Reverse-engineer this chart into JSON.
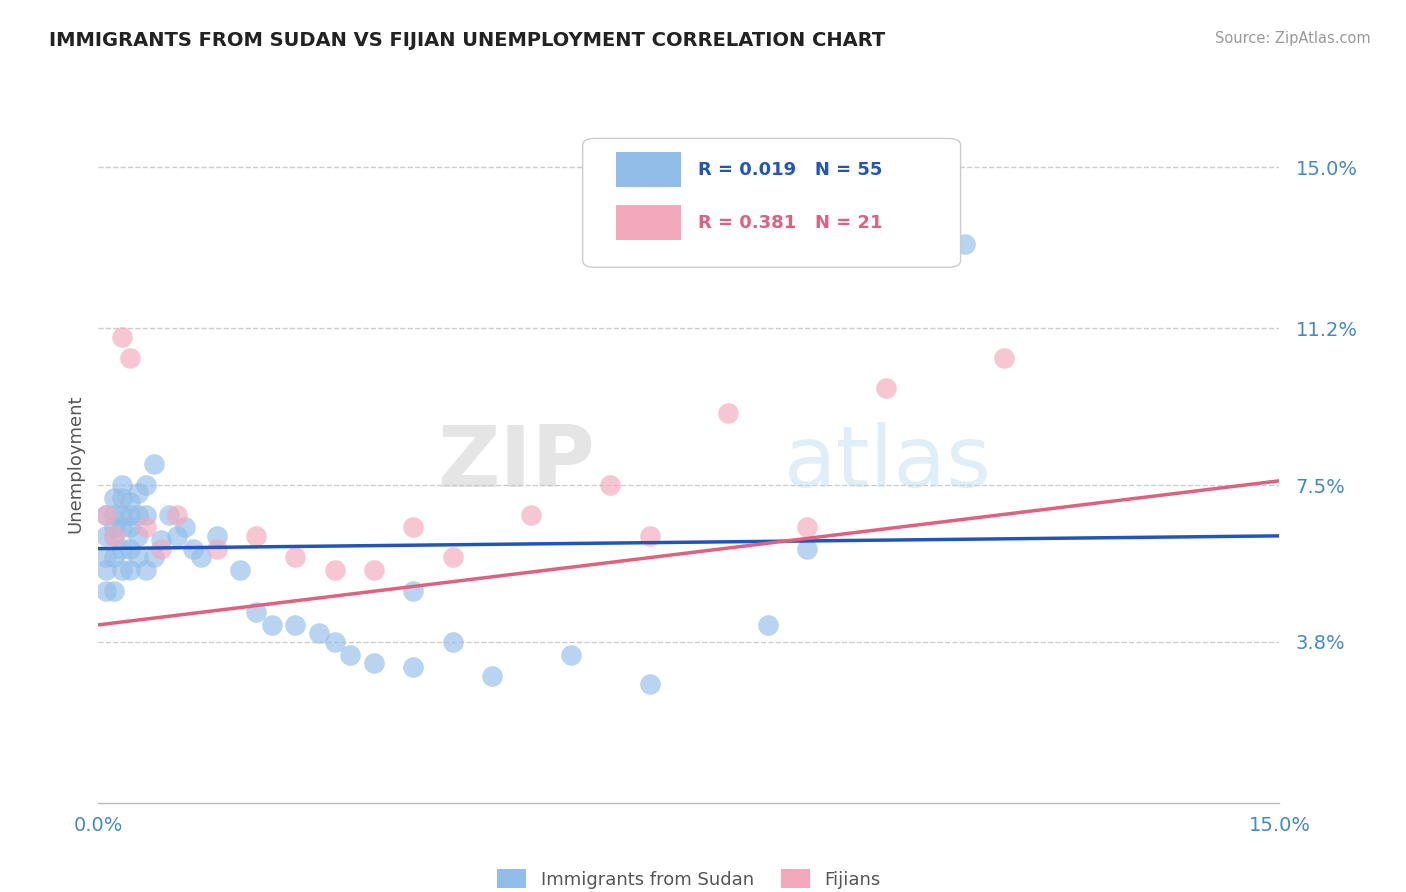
{
  "title": "IMMIGRANTS FROM SUDAN VS FIJIAN UNEMPLOYMENT CORRELATION CHART",
  "source": "Source: ZipAtlas.com",
  "ylabel": "Unemployment",
  "xlim": [
    0.0,
    0.15
  ],
  "ylim": [
    0.0,
    0.16
  ],
  "yticks": [
    0.038,
    0.075,
    0.112,
    0.15
  ],
  "ytick_labels": [
    "3.8%",
    "7.5%",
    "11.2%",
    "15.0%"
  ],
  "xticks": [
    0.0,
    0.15
  ],
  "xtick_labels": [
    "0.0%",
    "15.0%"
  ],
  "legend_R1": "R = 0.019",
  "legend_N1": "N = 55",
  "legend_R2": "R = 0.381",
  "legend_N2": "N = 21",
  "watermark_zip": "ZIP",
  "watermark_atlas": "atlas",
  "blue_color": "#92bde8",
  "pink_color": "#f4a8bc",
  "blue_line_color": "#2255bb",
  "pink_line_color": "#e06080",
  "title_color": "#222222",
  "axis_label_color": "#555555",
  "tick_color": "#4488cc",
  "grid_color": "#cccccc",
  "background_color": "#ffffff",
  "blue_scatter_x": [
    0.001,
    0.001,
    0.001,
    0.001,
    0.001,
    0.002,
    0.002,
    0.002,
    0.002,
    0.002,
    0.002,
    0.003,
    0.003,
    0.003,
    0.003,
    0.003,
    0.003,
    0.004,
    0.004,
    0.004,
    0.004,
    0.004,
    0.005,
    0.005,
    0.005,
    0.005,
    0.006,
    0.006,
    0.006,
    0.007,
    0.007,
    0.008,
    0.009,
    0.01,
    0.011,
    0.012,
    0.013,
    0.015,
    0.018,
    0.02,
    0.022,
    0.025,
    0.028,
    0.03,
    0.032,
    0.035,
    0.04,
    0.04,
    0.045,
    0.05,
    0.06,
    0.07,
    0.085,
    0.09,
    0.11
  ],
  "blue_scatter_y": [
    0.068,
    0.063,
    0.058,
    0.055,
    0.05,
    0.072,
    0.068,
    0.065,
    0.063,
    0.058,
    0.05,
    0.075,
    0.072,
    0.068,
    0.065,
    0.06,
    0.055,
    0.071,
    0.068,
    0.065,
    0.06,
    0.055,
    0.073,
    0.068,
    0.063,
    0.058,
    0.075,
    0.068,
    0.055,
    0.08,
    0.058,
    0.062,
    0.068,
    0.063,
    0.065,
    0.06,
    0.058,
    0.063,
    0.055,
    0.045,
    0.042,
    0.042,
    0.04,
    0.038,
    0.035,
    0.033,
    0.05,
    0.032,
    0.038,
    0.03,
    0.035,
    0.028,
    0.042,
    0.06,
    0.132
  ],
  "pink_scatter_x": [
    0.001,
    0.002,
    0.003,
    0.004,
    0.006,
    0.008,
    0.01,
    0.015,
    0.02,
    0.025,
    0.03,
    0.035,
    0.04,
    0.045,
    0.055,
    0.065,
    0.07,
    0.08,
    0.09,
    0.1,
    0.115
  ],
  "pink_scatter_y": [
    0.068,
    0.063,
    0.11,
    0.105,
    0.065,
    0.06,
    0.068,
    0.06,
    0.063,
    0.058,
    0.055,
    0.055,
    0.065,
    0.058,
    0.068,
    0.075,
    0.063,
    0.092,
    0.065,
    0.098,
    0.105
  ],
  "blue_line_x": [
    0.0,
    0.15
  ],
  "blue_line_y": [
    0.06,
    0.063
  ],
  "pink_line_x": [
    0.0,
    0.15
  ],
  "pink_line_y": [
    0.042,
    0.076
  ]
}
